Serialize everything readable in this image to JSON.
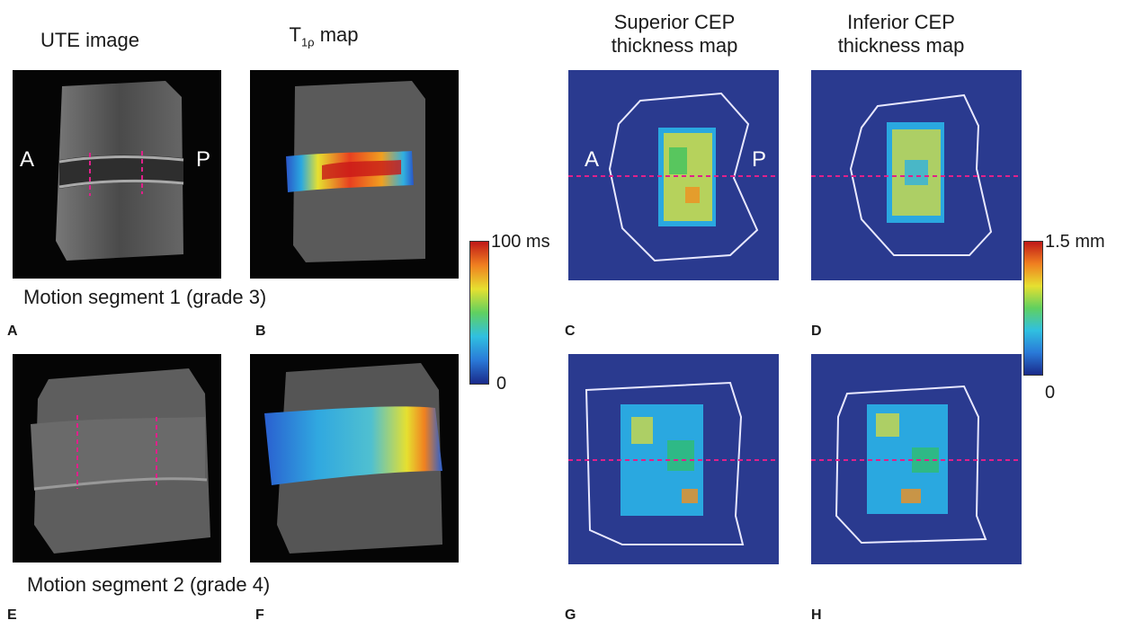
{
  "headers": {
    "ute": "UTE image",
    "t1rho_prefix": "T",
    "t1rho_sub": "1ρ",
    "t1rho_suffix": " map",
    "superior_line1": "Superior CEP",
    "superior_line2": "thickness map",
    "inferior_line1": "Inferior CEP",
    "inferior_line2": "thickness map"
  },
  "captions": {
    "segment1": "Motion segment 1 (grade 3)",
    "segment2": "Motion segment 2 (grade 4)"
  },
  "panel_letters": [
    "A",
    "B",
    "C",
    "D",
    "E",
    "F",
    "G",
    "H"
  ],
  "orientation": {
    "anterior": "A",
    "posterior": "P"
  },
  "colorbars": {
    "t1rho": {
      "max": "100 ms",
      "min": "0"
    },
    "thickness": {
      "max": "1.5 mm",
      "min": "0"
    }
  },
  "colors": {
    "map_background": "#2a3a8f",
    "dashed_line": "#e0208a",
    "outline": "#e8e8ff"
  }
}
